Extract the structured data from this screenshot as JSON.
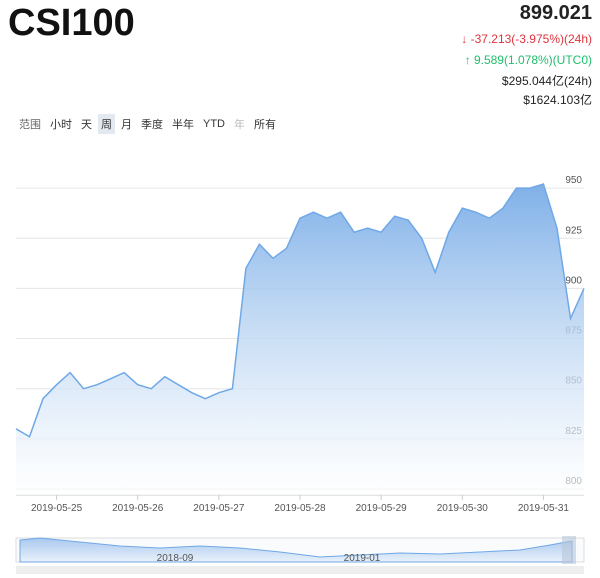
{
  "header": {
    "title": "CSI100",
    "price": "899.021",
    "change_24h": "-37.213(-3.975%)(24h)",
    "change_utc0": "9.589(1.078%)(UTC0)",
    "volume_24h": "$295.044亿(24h)",
    "market_cap": "$1624.103亿"
  },
  "range": {
    "label": "范围",
    "buttons": [
      "小时",
      "天",
      "周",
      "月",
      "季度",
      "半年",
      "YTD",
      "年",
      "所有"
    ]
  },
  "chart_data": {
    "type": "area",
    "color": "#6fa8e6",
    "grid": true,
    "categories": [
      null,
      null,
      null,
      "2019-05-25",
      null,
      null,
      null,
      null,
      null,
      "2019-05-26",
      null,
      null,
      null,
      null,
      null,
      "2019-05-27",
      null,
      null,
      null,
      null,
      null,
      "2019-05-28",
      null,
      null,
      null,
      null,
      null,
      "2019-05-29",
      null,
      null,
      null,
      null,
      null,
      "2019-05-30",
      null,
      null,
      null,
      null,
      null,
      "2019-05-31",
      null,
      null,
      null
    ],
    "values": [
      830,
      826,
      845,
      852,
      858,
      850,
      852,
      855,
      858,
      852,
      850,
      856,
      852,
      848,
      845,
      848,
      850,
      910,
      922,
      915,
      920,
      935,
      938,
      935,
      938,
      928,
      930,
      928,
      936,
      934,
      925,
      908,
      928,
      940,
      938,
      935,
      940,
      950,
      950,
      952,
      930,
      885,
      900
    ],
    "ylim": [
      797,
      969
    ],
    "yticks": [
      800,
      825,
      850,
      875,
      900,
      925,
      950
    ],
    "navigator_labels": [
      "2018-09",
      "2019-01"
    ]
  }
}
